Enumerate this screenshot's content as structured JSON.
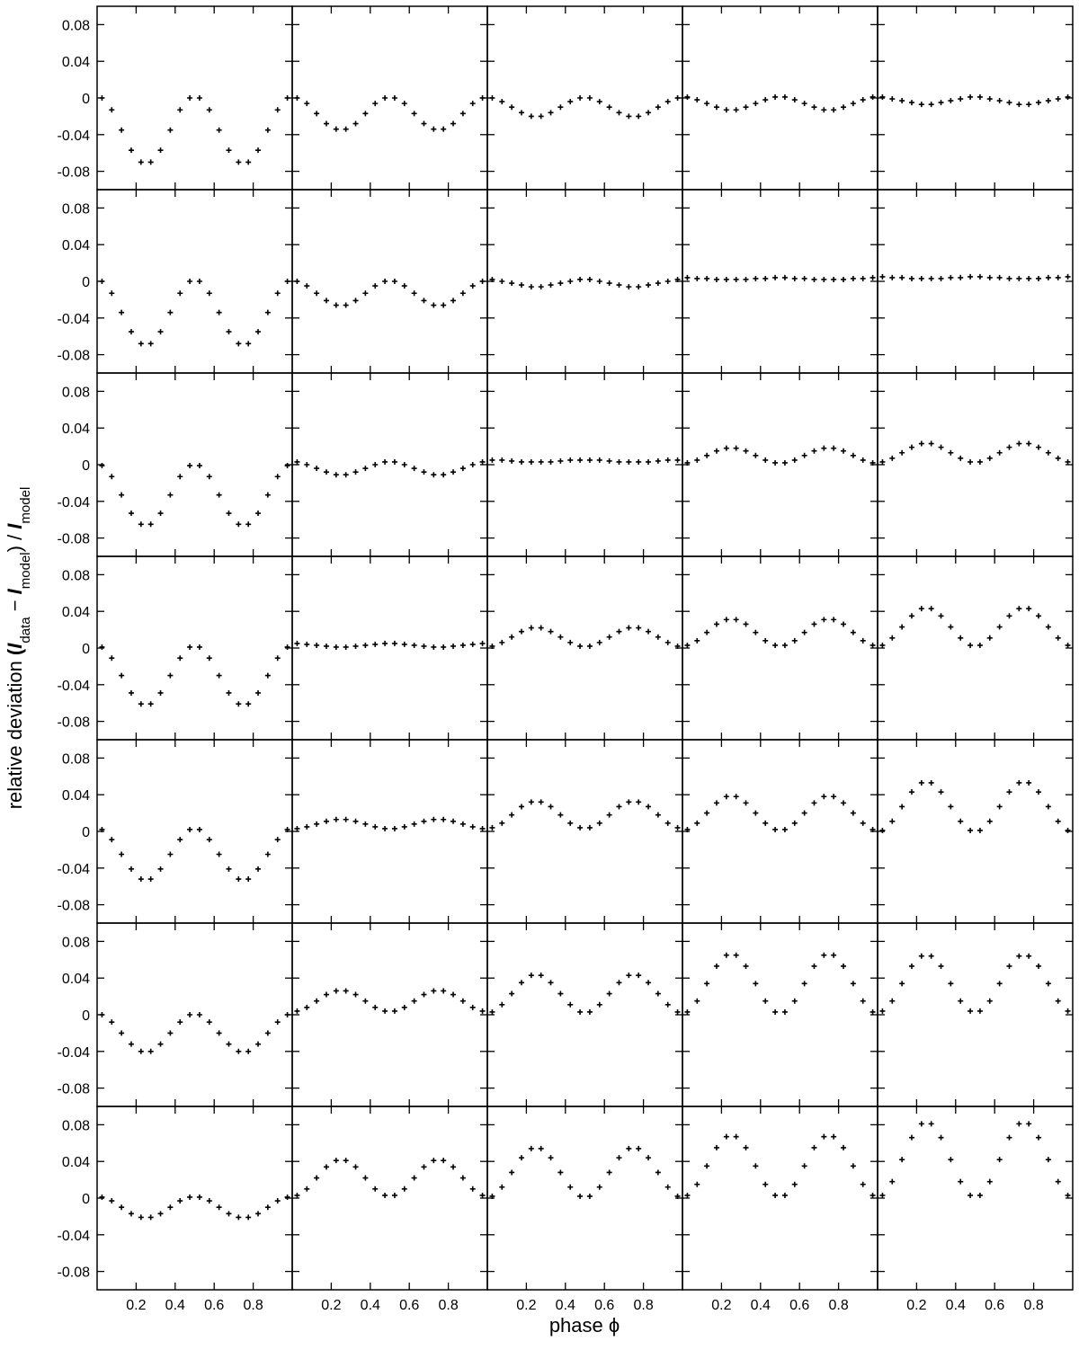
{
  "chart_data": {
    "type": "scatter",
    "ylabel": "relative deviation",
    "ylabel2": [
      "(",
      "I",
      "data",
      " − ",
      "I",
      "model",
      ") / ",
      "I",
      "model"
    ],
    "xlabel": "phase ϕ",
    "xlim": [
      0,
      1
    ],
    "ylim": [
      -0.1,
      0.1
    ],
    "xticks": [
      0.2,
      0.4,
      0.6,
      0.8
    ],
    "yticks": [
      -0.08,
      -0.04,
      0,
      0.04,
      0.08
    ],
    "color": "#000000",
    "x": [
      0.025,
      0.075,
      0.125,
      0.175,
      0.225,
      0.275,
      0.325,
      0.375,
      0.425,
      0.475,
      0.525,
      0.575,
      0.625,
      0.675,
      0.725,
      0.775,
      0.825,
      0.875,
      0.925,
      0.975
    ],
    "panels": [
      [
        [
          0,
          -0.013,
          -0.035,
          -0.057,
          -0.07,
          -0.07,
          -0.057,
          -0.035,
          -0.013,
          0,
          0,
          -0.013,
          -0.035,
          -0.057,
          -0.07,
          -0.07,
          -0.057,
          -0.035,
          -0.013,
          0
        ],
        [
          0,
          -0.006,
          -0.017,
          -0.028,
          -0.034,
          -0.034,
          -0.028,
          -0.017,
          -0.006,
          0,
          0,
          -0.006,
          -0.017,
          -0.028,
          -0.034,
          -0.034,
          -0.028,
          -0.017,
          -0.006,
          0
        ],
        [
          0,
          -0.004,
          -0.01,
          -0.016,
          -0.02,
          -0.02,
          -0.016,
          -0.01,
          -0.004,
          0,
          0,
          -0.004,
          -0.01,
          -0.016,
          -0.02,
          -0.02,
          -0.016,
          -0.01,
          -0.004,
          0
        ],
        [
          0.001,
          -0.002,
          -0.006,
          -0.01,
          -0.013,
          -0.013,
          -0.01,
          -0.006,
          -0.002,
          0.001,
          0.001,
          -0.002,
          -0.006,
          -0.01,
          -0.013,
          -0.013,
          -0.01,
          -0.006,
          -0.002,
          0.001
        ],
        [
          0.001,
          -0.001,
          -0.003,
          -0.005,
          -0.007,
          -0.007,
          -0.005,
          -0.003,
          -0.001,
          0.001,
          0.001,
          -0.001,
          -0.003,
          -0.005,
          -0.007,
          -0.007,
          -0.005,
          -0.003,
          -0.001,
          0.001
        ]
      ],
      [
        [
          0,
          -0.013,
          -0.034,
          -0.055,
          -0.068,
          -0.068,
          -0.055,
          -0.034,
          -0.013,
          0,
          0,
          -0.013,
          -0.034,
          -0.055,
          -0.068,
          -0.068,
          -0.055,
          -0.034,
          -0.013,
          0
        ],
        [
          0,
          -0.005,
          -0.013,
          -0.021,
          -0.026,
          -0.026,
          -0.021,
          -0.013,
          -0.005,
          0,
          0,
          -0.005,
          -0.013,
          -0.021,
          -0.026,
          -0.026,
          -0.021,
          -0.013,
          -0.005,
          0
        ],
        [
          0.002,
          0,
          -0.002,
          -0.004,
          -0.006,
          -0.006,
          -0.004,
          -0.002,
          0,
          0.002,
          0.002,
          0,
          -0.002,
          -0.004,
          -0.006,
          -0.006,
          -0.004,
          -0.002,
          0,
          0.002
        ],
        [
          0.004,
          0.003,
          0.003,
          0.002,
          0.002,
          0.002,
          0.002,
          0.003,
          0.003,
          0.004,
          0.004,
          0.003,
          0.003,
          0.002,
          0.002,
          0.002,
          0.002,
          0.003,
          0.003,
          0.004
        ],
        [
          0.005,
          0.004,
          0.004,
          0.003,
          0.003,
          0.003,
          0.003,
          0.004,
          0.004,
          0.005,
          0.005,
          0.004,
          0.004,
          0.003,
          0.003,
          0.003,
          0.003,
          0.004,
          0.004,
          0.005
        ]
      ],
      [
        [
          -0.001,
          -0.013,
          -0.033,
          -0.053,
          -0.065,
          -0.065,
          -0.053,
          -0.033,
          -0.013,
          -0.001,
          -0.001,
          -0.013,
          -0.033,
          -0.053,
          -0.065,
          -0.065,
          -0.053,
          -0.033,
          -0.013,
          -0.001
        ],
        [
          0.003,
          0,
          -0.004,
          -0.008,
          -0.011,
          -0.011,
          -0.008,
          -0.004,
          0,
          0.003,
          0.003,
          0,
          -0.004,
          -0.008,
          -0.011,
          -0.011,
          -0.008,
          -0.004,
          0,
          0.003
        ],
        [
          0.005,
          0.005,
          0.004,
          0.003,
          0.003,
          0.003,
          0.003,
          0.004,
          0.005,
          0.005,
          0.005,
          0.005,
          0.004,
          0.003,
          0.003,
          0.003,
          0.003,
          0.004,
          0.005,
          0.005
        ],
        [
          0.002,
          0.005,
          0.01,
          0.015,
          0.018,
          0.018,
          0.015,
          0.01,
          0.005,
          0.002,
          0.002,
          0.005,
          0.01,
          0.015,
          0.018,
          0.018,
          0.015,
          0.01,
          0.005,
          0.002
        ],
        [
          0.003,
          0.007,
          0.013,
          0.019,
          0.023,
          0.023,
          0.019,
          0.013,
          0.007,
          0.003,
          0.003,
          0.007,
          0.013,
          0.019,
          0.023,
          0.023,
          0.019,
          0.013,
          0.007,
          0.003
        ]
      ],
      [
        [
          0.001,
          -0.011,
          -0.03,
          -0.049,
          -0.061,
          -0.061,
          -0.049,
          -0.03,
          -0.011,
          0.001,
          0.001,
          -0.011,
          -0.03,
          -0.049,
          -0.061,
          -0.061,
          -0.049,
          -0.03,
          -0.011,
          0.001
        ],
        [
          0.005,
          0.004,
          0.003,
          0.002,
          0.001,
          0.001,
          0.002,
          0.003,
          0.004,
          0.005,
          0.005,
          0.004,
          0.003,
          0.002,
          0.001,
          0.001,
          0.002,
          0.003,
          0.004,
          0.005
        ],
        [
          0.002,
          0.006,
          0.012,
          0.018,
          0.022,
          0.022,
          0.018,
          0.012,
          0.006,
          0.002,
          0.002,
          0.006,
          0.012,
          0.018,
          0.022,
          0.022,
          0.018,
          0.012,
          0.006,
          0.002
        ],
        [
          0.003,
          0.008,
          0.017,
          0.026,
          0.031,
          0.031,
          0.026,
          0.017,
          0.008,
          0.003,
          0.003,
          0.008,
          0.017,
          0.026,
          0.031,
          0.031,
          0.026,
          0.017,
          0.008,
          0.003
        ],
        [
          0.003,
          0.011,
          0.023,
          0.035,
          0.043,
          0.043,
          0.035,
          0.023,
          0.011,
          0.003,
          0.003,
          0.011,
          0.023,
          0.035,
          0.043,
          0.043,
          0.035,
          0.023,
          0.011,
          0.003
        ]
      ],
      [
        [
          0.002,
          -0.009,
          -0.025,
          -0.041,
          -0.052,
          -0.052,
          -0.041,
          -0.025,
          -0.009,
          0.002,
          0.002,
          -0.009,
          -0.025,
          -0.041,
          -0.052,
          -0.052,
          -0.041,
          -0.025,
          -0.009,
          0.002
        ],
        [
          0.003,
          0.005,
          0.008,
          0.011,
          0.013,
          0.013,
          0.011,
          0.008,
          0.005,
          0.003,
          0.003,
          0.005,
          0.008,
          0.011,
          0.013,
          0.013,
          0.011,
          0.008,
          0.005,
          0.003
        ],
        [
          0.004,
          0.009,
          0.018,
          0.027,
          0.032,
          0.032,
          0.027,
          0.018,
          0.009,
          0.004,
          0.004,
          0.009,
          0.018,
          0.027,
          0.032,
          0.032,
          0.027,
          0.018,
          0.009,
          0.004
        ],
        [
          0.002,
          0.009,
          0.02,
          0.031,
          0.038,
          0.038,
          0.031,
          0.02,
          0.009,
          0.002,
          0.002,
          0.009,
          0.02,
          0.031,
          0.038,
          0.038,
          0.031,
          0.02,
          0.009,
          0.002
        ],
        [
          0.001,
          0.011,
          0.027,
          0.043,
          0.053,
          0.053,
          0.043,
          0.027,
          0.011,
          0.001,
          0.001,
          0.011,
          0.027,
          0.043,
          0.053,
          0.053,
          0.043,
          0.027,
          0.011,
          0.001
        ]
      ],
      [
        [
          0,
          -0.008,
          -0.02,
          -0.032,
          -0.04,
          -0.04,
          -0.032,
          -0.02,
          -0.008,
          0,
          0,
          -0.008,
          -0.02,
          -0.032,
          -0.04,
          -0.04,
          -0.032,
          -0.02,
          -0.008,
          0
        ],
        [
          0.004,
          0.008,
          0.015,
          0.022,
          0.026,
          0.026,
          0.022,
          0.015,
          0.008,
          0.004,
          0.004,
          0.008,
          0.015,
          0.022,
          0.026,
          0.026,
          0.022,
          0.015,
          0.008,
          0.004
        ],
        [
          0.003,
          0.011,
          0.023,
          0.035,
          0.043,
          0.043,
          0.035,
          0.023,
          0.011,
          0.003,
          0.003,
          0.011,
          0.023,
          0.035,
          0.043,
          0.043,
          0.035,
          0.023,
          0.011,
          0.003
        ],
        [
          0.003,
          0.015,
          0.034,
          0.053,
          0.065,
          0.065,
          0.053,
          0.034,
          0.015,
          0.003,
          0.003,
          0.015,
          0.034,
          0.053,
          0.065,
          0.065,
          0.053,
          0.034,
          0.015,
          0.003
        ],
        [
          0.004,
          0.015,
          0.034,
          0.053,
          0.064,
          0.064,
          0.053,
          0.034,
          0.015,
          0.004,
          0.004,
          0.015,
          0.034,
          0.053,
          0.064,
          0.064,
          0.053,
          0.034,
          0.015,
          0.004
        ]
      ],
      [
        [
          0.001,
          -0.003,
          -0.01,
          -0.017,
          -0.021,
          -0.021,
          -0.017,
          -0.01,
          -0.003,
          0.001,
          0.001,
          -0.003,
          -0.01,
          -0.017,
          -0.021,
          -0.021,
          -0.017,
          -0.01,
          -0.003,
          0.001
        ],
        [
          0.003,
          0.01,
          0.022,
          0.034,
          0.041,
          0.041,
          0.034,
          0.022,
          0.01,
          0.003,
          0.003,
          0.01,
          0.022,
          0.034,
          0.041,
          0.041,
          0.034,
          0.022,
          0.01,
          0.003
        ],
        [
          0.002,
          0.012,
          0.028,
          0.044,
          0.054,
          0.054,
          0.044,
          0.028,
          0.012,
          0.002,
          0.002,
          0.012,
          0.028,
          0.044,
          0.054,
          0.054,
          0.044,
          0.028,
          0.012,
          0.002
        ],
        [
          0.003,
          0.015,
          0.035,
          0.055,
          0.067,
          0.067,
          0.055,
          0.035,
          0.015,
          0.003,
          0.003,
          0.015,
          0.035,
          0.055,
          0.067,
          0.067,
          0.055,
          0.035,
          0.015,
          0.003
        ],
        [
          0.003,
          0.018,
          0.042,
          0.066,
          0.081,
          0.081,
          0.066,
          0.042,
          0.018,
          0.003,
          0.003,
          0.018,
          0.042,
          0.066,
          0.081,
          0.081,
          0.066,
          0.042,
          0.018,
          0.003
        ]
      ]
    ]
  }
}
